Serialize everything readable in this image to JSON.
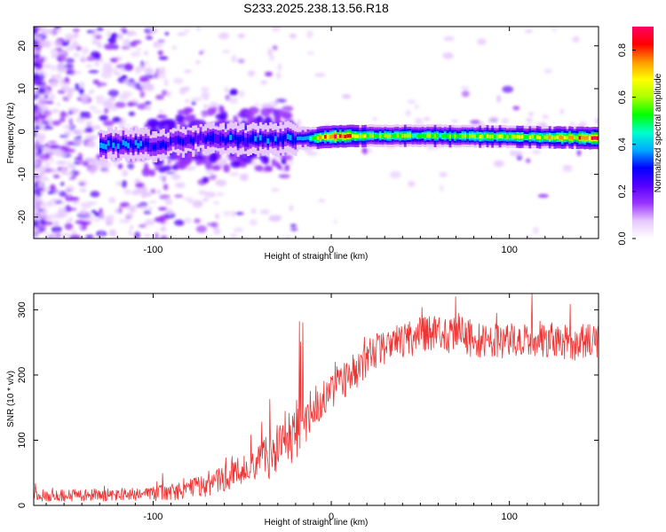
{
  "figure_title": "S233.2025.238.13.56.R18",
  "chart_data": [
    {
      "type": "heatmap",
      "title": "S233.2025.238.13.56.R18",
      "xlabel": "Height of straight line (km)",
      "ylabel": "Frequency (Hz)",
      "xlim": [
        -167,
        150
      ],
      "ylim": [
        -25,
        24.5
      ],
      "xticks": [
        -100,
        0,
        100
      ],
      "xtick_labels": [
        "-100",
        "0",
        "100"
      ],
      "yticks": [
        -20,
        -10,
        0,
        10,
        20
      ],
      "ytick_labels": [
        "-20",
        "-10",
        "0",
        "10",
        "20"
      ],
      "colorbar": {
        "label": "Normalized spectral amplitude",
        "range": [
          0.0,
          0.9
        ],
        "ticks": [
          0.0,
          0.2,
          0.4,
          0.6,
          0.8
        ],
        "tick_labels": [
          "0.0",
          "0.2",
          "0.4",
          "0.6",
          "0.8"
        ],
        "colormap": [
          "#ffffff",
          "#e6c8ff",
          "#9933ff",
          "#5500ff",
          "#0000ff",
          "#00aaff",
          "#00ffcc",
          "#00ff00",
          "#aaff00",
          "#ffff00",
          "#ff9900",
          "#ff0000",
          "#ff0066"
        ]
      },
      "ridge": [
        {
          "x": -125,
          "y": -3.0
        },
        {
          "x": -100,
          "y": -3.2
        },
        {
          "x": -75,
          "y": -1.5
        },
        {
          "x": -50,
          "y": -2.0
        },
        {
          "x": -30,
          "y": -1.8
        },
        {
          "x": -10,
          "y": -1.5
        },
        {
          "x": 0,
          "y": -1.2
        },
        {
          "x": 20,
          "y": -1.0
        },
        {
          "x": 50,
          "y": -1.0
        },
        {
          "x": 80,
          "y": -1.1
        },
        {
          "x": 110,
          "y": -1.3
        },
        {
          "x": 140,
          "y": -1.5
        },
        {
          "x": 150,
          "y": -1.6
        }
      ],
      "ridge_amplitude": [
        {
          "x": -125,
          "amp": 0.35
        },
        {
          "x": -90,
          "amp": 0.25
        },
        {
          "x": -60,
          "amp": 0.3
        },
        {
          "x": -30,
          "amp": 0.3
        },
        {
          "x": -15,
          "amp": 0.35
        },
        {
          "x": -2,
          "amp": 0.85
        },
        {
          "x": 12,
          "amp": 0.7
        },
        {
          "x": 30,
          "amp": 0.55
        },
        {
          "x": 60,
          "amp": 0.55
        },
        {
          "x": 85,
          "amp": 0.6
        },
        {
          "x": 120,
          "amp": 0.62
        },
        {
          "x": 145,
          "amp": 0.78
        }
      ]
    },
    {
      "type": "line",
      "xlabel": "Height of straight line (km)",
      "ylabel": "SNR (10 * v/v)",
      "xlim": [
        -167,
        150
      ],
      "ylim": [
        0,
        325
      ],
      "xticks": [
        -100,
        0,
        100
      ],
      "xtick_labels": [
        "-100",
        "0",
        "100"
      ],
      "yticks": [
        0,
        100,
        200,
        300
      ],
      "ytick_labels": [
        "0",
        "100",
        "200",
        "300"
      ],
      "color": "#ee3333",
      "series": [
        {
          "name": "SNR",
          "x": [
            -167,
            -150,
            -130,
            -110,
            -100,
            -90,
            -80,
            -70,
            -60,
            -50,
            -40,
            -35,
            -30,
            -25,
            -20,
            -15,
            -10,
            -5,
            0,
            5,
            10,
            15,
            20,
            25,
            30,
            40,
            50,
            60,
            70,
            80,
            90,
            100,
            110,
            120,
            130,
            140,
            150
          ],
          "values": [
            15,
            15,
            16,
            17,
            18,
            20,
            25,
            30,
            40,
            55,
            68,
            75,
            85,
            100,
            115,
            130,
            150,
            160,
            170,
            185,
            200,
            210,
            225,
            235,
            245,
            255,
            260,
            265,
            262,
            255,
            250,
            255,
            258,
            255,
            250,
            250,
            255
          ],
          "spread": [
            12,
            12,
            12,
            12,
            14,
            16,
            18,
            22,
            26,
            30,
            35,
            45,
            55,
            60,
            65,
            55,
            45,
            40,
            35,
            35,
            35,
            35,
            35,
            35,
            35,
            35,
            38,
            40,
            38,
            35,
            35,
            35,
            35,
            35,
            35,
            35,
            35
          ]
        }
      ]
    }
  ]
}
